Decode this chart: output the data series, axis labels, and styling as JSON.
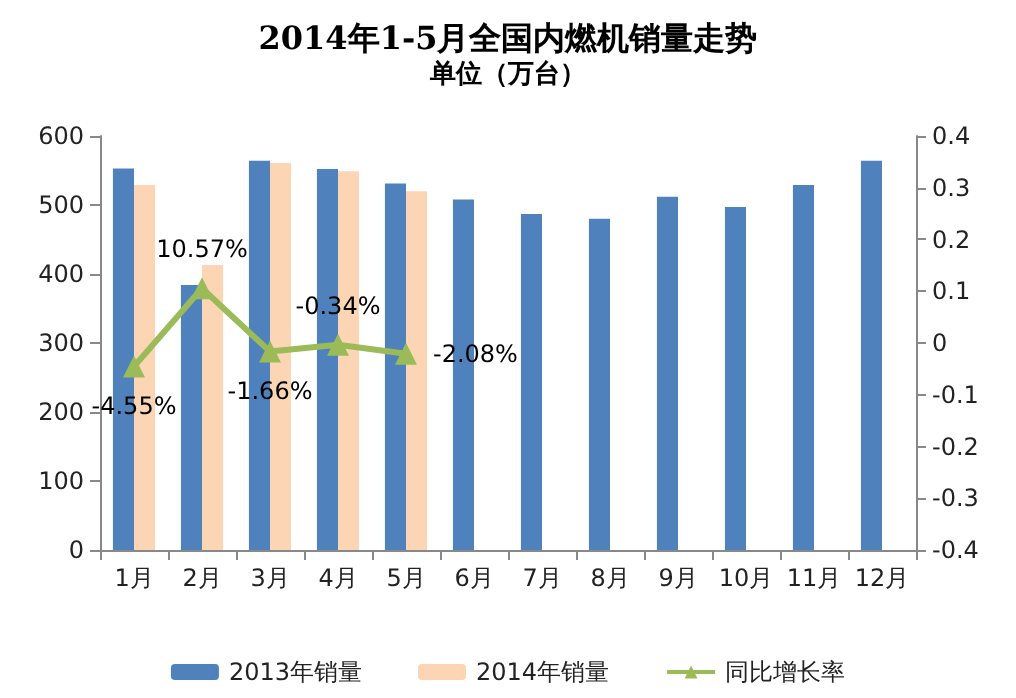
{
  "chart_data": {
    "type": "bar",
    "title": "2014年1-5月全国内燃机销量走势",
    "subtitle": "单位（万台）",
    "categories": [
      "1月",
      "2月",
      "3月",
      "4月",
      "5月",
      "6月",
      "7月",
      "8月",
      "9月",
      "10月",
      "11月",
      "12月"
    ],
    "series": [
      {
        "name": "2013年销量",
        "color": "#4f81bd",
        "values": [
          553,
          384,
          564,
          552,
          531,
          508,
          487,
          480,
          512,
          497,
          529,
          564
        ]
      },
      {
        "name": "2014年销量",
        "color": "#fcd5b5",
        "values": [
          529,
          413,
          561,
          549,
          520,
          null,
          null,
          null,
          null,
          null,
          null,
          null
        ]
      },
      {
        "name": "同比增长率",
        "type": "line",
        "axis": "y2",
        "color": "#9bbb59",
        "marker": "triangle",
        "values": [
          -0.0455,
          0.1057,
          -0.0166,
          -0.0034,
          -0.0208,
          null,
          null,
          null,
          null,
          null,
          null,
          null
        ],
        "value_labels": [
          "-4.55%",
          "10.57%",
          "-1.66%",
          "-0.34%",
          "-2.08%",
          null,
          null,
          null,
          null,
          null,
          null,
          null
        ]
      }
    ],
    "ylim": [
      0,
      600
    ],
    "yticks": [
      0,
      100,
      200,
      300,
      400,
      500,
      600
    ],
    "y2lim": [
      -0.4,
      0.4
    ],
    "y2ticks": [
      -0.4,
      -0.3,
      -0.2,
      -0.1,
      0,
      0.1,
      0.2,
      0.3,
      0.4
    ],
    "grid": false,
    "legend": "bottom"
  }
}
